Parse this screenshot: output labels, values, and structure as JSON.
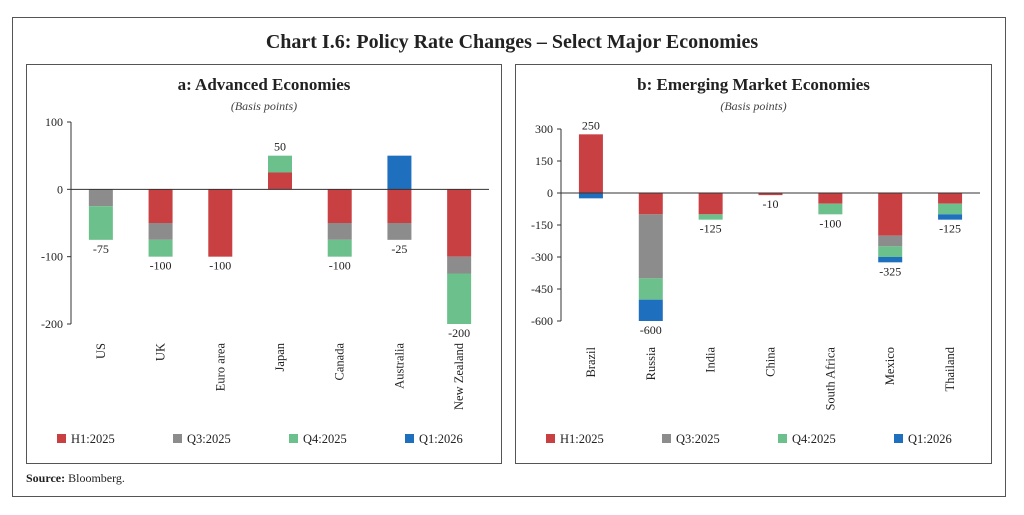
{
  "title": "Chart I.6: Policy Rate Changes – Select Major Economies",
  "source_label": "Source:",
  "source_text": "Bloomberg.",
  "chart_data": [
    {
      "type": "bar",
      "stacked": true,
      "panel_title": "a: Advanced Economies",
      "unit_note": "(Basis points)",
      "ylim": [
        -200,
        100
      ],
      "yticks": [
        100,
        0,
        -100,
        -200
      ],
      "categories": [
        "US",
        "UK",
        "Euro area",
        "Japan",
        "Canada",
        "Australia",
        "New Zealand"
      ],
      "series": [
        {
          "name": "H1:2025",
          "color": "#c94043",
          "values": [
            0,
            -50,
            -100,
            25,
            -50,
            -50,
            -100
          ]
        },
        {
          "name": "Q3:2025",
          "color": "#8c8c8c",
          "values": [
            -25,
            -25,
            0,
            0,
            -25,
            -25,
            -25
          ]
        },
        {
          "name": "Q4:2025",
          "color": "#6cc08b",
          "values": [
            -50,
            -25,
            0,
            25,
            -25,
            0,
            -75
          ]
        },
        {
          "name": "Q1:2026",
          "color": "#1f6fbf",
          "values": [
            0,
            0,
            0,
            0,
            0,
            50,
            0
          ]
        }
      ],
      "data_labels": [
        "-75",
        "-100",
        "-100",
        "50",
        "-100",
        "-25",
        "-200"
      ]
    },
    {
      "type": "bar",
      "stacked": true,
      "panel_title": "b: Emerging Market Economies",
      "unit_note": "(Basis points)",
      "ylim": [
        -600,
        300
      ],
      "yticks": [
        300,
        150,
        0,
        -150,
        -300,
        -450,
        -600
      ],
      "categories": [
        "Brazil",
        "Russia",
        "India",
        "China",
        "South Africa",
        "Mexico",
        "Thailand"
      ],
      "series": [
        {
          "name": "H1:2025",
          "color": "#c94043",
          "values": [
            275,
            -100,
            -100,
            -10,
            -50,
            -200,
            -50
          ]
        },
        {
          "name": "Q3:2025",
          "color": "#8c8c8c",
          "values": [
            0,
            -300,
            0,
            0,
            0,
            -50,
            0
          ]
        },
        {
          "name": "Q4:2025",
          "color": "#6cc08b",
          "values": [
            0,
            -100,
            -25,
            0,
            -50,
            -50,
            -50
          ]
        },
        {
          "name": "Q1:2026",
          "color": "#1f6fbf",
          "values": [
            -25,
            -100,
            0,
            0,
            0,
            -25,
            -25
          ]
        }
      ],
      "data_labels": [
        "250",
        "-600",
        "-125",
        "-10",
        "-100",
        "-325",
        "-125"
      ]
    }
  ]
}
